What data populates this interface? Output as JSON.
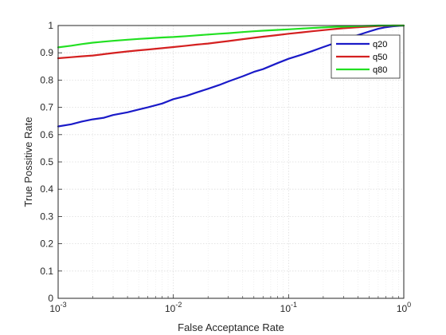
{
  "chart_data": {
    "type": "line",
    "title": "",
    "xlabel": "False Acceptance Rate",
    "ylabel": "True Possitive Rate",
    "x_scale": "log",
    "xlim": [
      0.001,
      1
    ],
    "ylim": [
      0,
      1
    ],
    "x_ticks": [
      {
        "value": 0.001,
        "base": "10",
        "exp": "-3"
      },
      {
        "value": 0.01,
        "base": "10",
        "exp": "-2"
      },
      {
        "value": 0.1,
        "base": "10",
        "exp": "-1"
      },
      {
        "value": 1,
        "base": "10",
        "exp": "0"
      }
    ],
    "y_ticks": [
      {
        "value": 0,
        "label": "0"
      },
      {
        "value": 0.1,
        "label": "0.1"
      },
      {
        "value": 0.2,
        "label": "0.2"
      },
      {
        "value": 0.3,
        "label": "0.3"
      },
      {
        "value": 0.4,
        "label": "0.4"
      },
      {
        "value": 0.5,
        "label": "0.5"
      },
      {
        "value": 0.6,
        "label": "0.6"
      },
      {
        "value": 0.7,
        "label": "0.7"
      },
      {
        "value": 0.8,
        "label": "0.8"
      },
      {
        "value": 0.9,
        "label": "0.9"
      },
      {
        "value": 1,
        "label": "1"
      }
    ],
    "grid": true,
    "legend_position": "top-right",
    "series": [
      {
        "name": "q20",
        "color": "#1a1ac8",
        "x": [
          0.001,
          0.0013,
          0.0016,
          0.002,
          0.0025,
          0.003,
          0.004,
          0.005,
          0.006,
          0.008,
          0.01,
          0.013,
          0.016,
          0.02,
          0.025,
          0.03,
          0.04,
          0.05,
          0.06,
          0.08,
          0.1,
          0.13,
          0.16,
          0.2,
          0.25,
          0.3,
          0.4,
          0.5,
          0.6,
          0.7,
          0.8,
          1
        ],
        "y": [
          0.63,
          0.638,
          0.648,
          0.656,
          0.662,
          0.672,
          0.682,
          0.692,
          0.7,
          0.714,
          0.73,
          0.742,
          0.755,
          0.768,
          0.782,
          0.795,
          0.814,
          0.83,
          0.84,
          0.862,
          0.878,
          0.893,
          0.906,
          0.921,
          0.935,
          0.948,
          0.965,
          0.978,
          0.988,
          0.994,
          0.997,
          1.0
        ]
      },
      {
        "name": "q50",
        "color": "#d42020",
        "x": [
          0.001,
          0.0013,
          0.0016,
          0.002,
          0.0025,
          0.003,
          0.004,
          0.005,
          0.006,
          0.008,
          0.01,
          0.013,
          0.016,
          0.02,
          0.025,
          0.03,
          0.04,
          0.05,
          0.06,
          0.08,
          0.1,
          0.13,
          0.16,
          0.2,
          0.25,
          0.3,
          0.4,
          0.5,
          0.6,
          0.7,
          0.8,
          1
        ],
        "y": [
          0.88,
          0.884,
          0.887,
          0.89,
          0.895,
          0.899,
          0.905,
          0.909,
          0.912,
          0.917,
          0.921,
          0.926,
          0.93,
          0.934,
          0.939,
          0.943,
          0.95,
          0.955,
          0.959,
          0.965,
          0.97,
          0.975,
          0.979,
          0.983,
          0.987,
          0.99,
          0.994,
          0.996,
          0.998,
          0.999,
          1.0,
          1.0
        ]
      },
      {
        "name": "q80",
        "color": "#22e022",
        "x": [
          0.001,
          0.0013,
          0.0016,
          0.002,
          0.0025,
          0.003,
          0.004,
          0.005,
          0.006,
          0.008,
          0.01,
          0.013,
          0.016,
          0.02,
          0.025,
          0.03,
          0.04,
          0.05,
          0.06,
          0.08,
          0.1,
          0.13,
          0.16,
          0.2,
          0.25,
          0.3,
          0.4,
          0.5,
          0.6,
          0.7,
          0.8,
          1
        ],
        "y": [
          0.92,
          0.926,
          0.932,
          0.937,
          0.941,
          0.944,
          0.948,
          0.951,
          0.953,
          0.956,
          0.958,
          0.961,
          0.964,
          0.967,
          0.97,
          0.972,
          0.976,
          0.979,
          0.981,
          0.984,
          0.986,
          0.989,
          0.991,
          0.993,
          0.995,
          0.996,
          0.998,
          0.999,
          1.0,
          1.0,
          1.0,
          1.0
        ]
      }
    ]
  }
}
